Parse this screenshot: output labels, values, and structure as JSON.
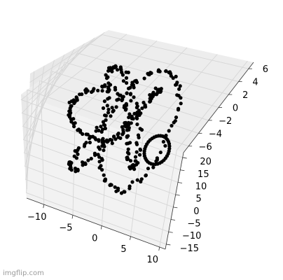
{
  "chart_data": {
    "type": "scatter",
    "projection": "3d",
    "title": "",
    "xlabel": "",
    "ylabel": "",
    "zlabel": "",
    "xlim": [
      -13,
      11
    ],
    "ylim": [
      -17,
      22
    ],
    "zlim": [
      -7,
      7
    ],
    "xticks": [
      -10,
      -5,
      0,
      5,
      10
    ],
    "xtick_labels": [
      "−10",
      "−5",
      "0",
      "5",
      "10"
    ],
    "yticks": [
      -15,
      -10,
      -5,
      0,
      5,
      10,
      15,
      20
    ],
    "ytick_labels": [
      "−15",
      "−10",
      "−5",
      "0",
      "5",
      "10",
      "15",
      "20"
    ],
    "zticks": [
      -6,
      -4,
      -2,
      0,
      2,
      4,
      6
    ],
    "ztick_labels": [
      "−6",
      "−4",
      "−2",
      "0",
      "2",
      "4",
      "6"
    ],
    "grid": true,
    "legend": "none",
    "marker_color": "#000000",
    "pane_color": "#f2f2f2",
    "point_count_estimate": 380,
    "series": [
      {
        "name": "",
        "color": "#000000"
      }
    ]
  },
  "watermark": "imgflip.com"
}
